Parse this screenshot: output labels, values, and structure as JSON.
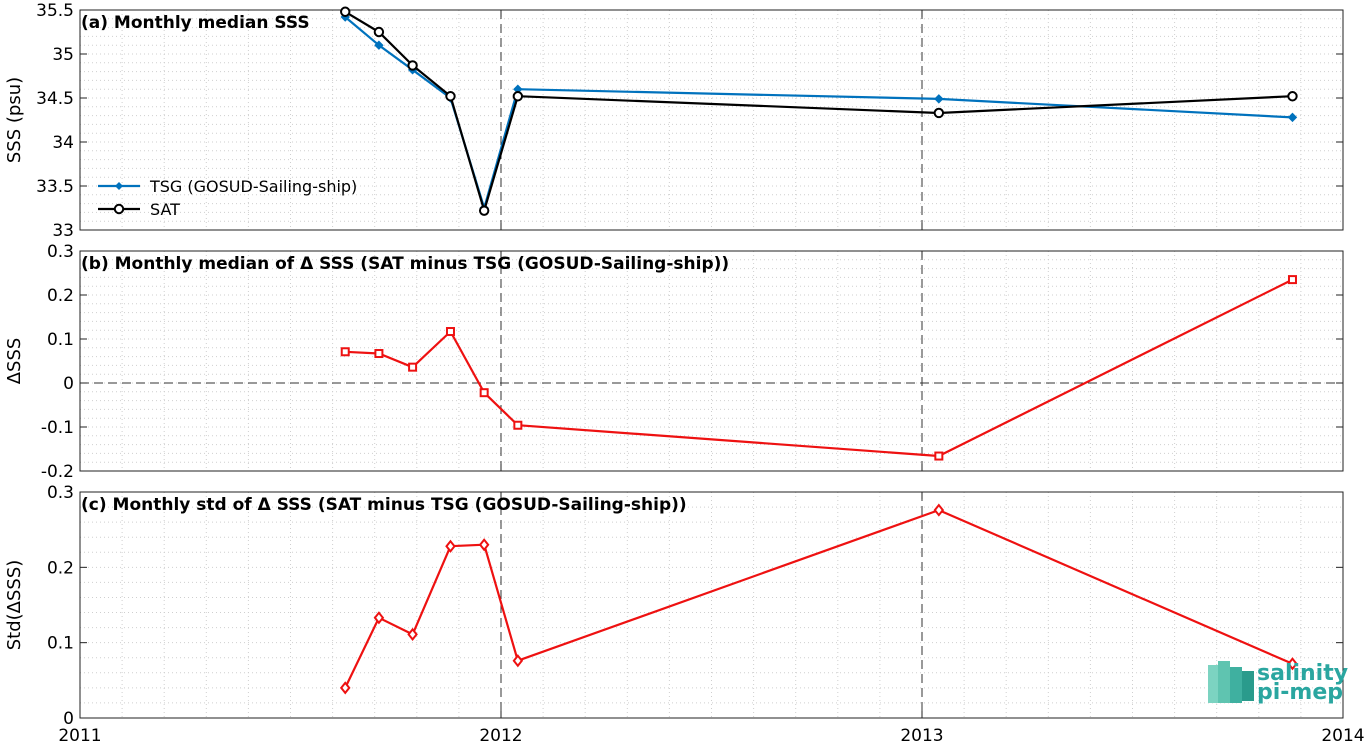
{
  "chart_data": [
    {
      "type": "line",
      "title": "(a) Monthly median SSS",
      "ylabel": "SSS (psu)",
      "xlim": [
        2011,
        2014
      ],
      "ylim": [
        33,
        35.5
      ],
      "yticks": [
        33,
        33.5,
        34,
        34.5,
        35,
        35.5
      ],
      "ytick_labels": [
        "33",
        "33.5",
        "34",
        "34.5",
        "35",
        "35.5"
      ],
      "grid": "minor dotted",
      "legend_position": "lower-left",
      "series": [
        {
          "name": "TSG (GOSUD-Sailing-ship)",
          "color": "#0072bd",
          "marker": "dot",
          "x": [
            2011.63,
            2011.71,
            2011.79,
            2011.88,
            2011.96,
            2012.04,
            2013.04,
            2013.88
          ],
          "values": [
            35.42,
            35.1,
            34.82,
            34.5,
            33.25,
            34.6,
            34.49,
            34.28
          ]
        },
        {
          "name": "SAT",
          "color": "#000000",
          "marker": "circle",
          "x": [
            2011.63,
            2011.71,
            2011.79,
            2011.88,
            2011.96,
            2012.04,
            2013.04,
            2013.88
          ],
          "values": [
            35.48,
            35.25,
            34.87,
            34.52,
            33.22,
            34.52,
            34.33,
            34.52
          ]
        }
      ]
    },
    {
      "type": "line",
      "title": "(b) Monthly median of Δ SSS (SAT minus TSG (GOSUD-Sailing-ship))",
      "ylabel": "ΔSSS",
      "xlim": [
        2011,
        2014
      ],
      "ylim": [
        -0.2,
        0.3
      ],
      "yticks": [
        -0.2,
        -0.1,
        0,
        0.1,
        0.2,
        0.3
      ],
      "ytick_labels": [
        "-0.2",
        "-0.1",
        "0",
        "0.1",
        "0.2",
        "0.3"
      ],
      "zero_line": true,
      "series": [
        {
          "color": "#ee1111",
          "marker": "square",
          "x": [
            2011.63,
            2011.71,
            2011.79,
            2011.88,
            2011.96,
            2012.04,
            2013.04,
            2013.88
          ],
          "values": [
            0.071,
            0.067,
            0.036,
            0.117,
            -0.022,
            -0.096,
            -0.166,
            0.235
          ]
        }
      ]
    },
    {
      "type": "line",
      "title": "(c) Monthly std of Δ SSS (SAT minus TSG (GOSUD-Sailing-ship))",
      "ylabel": "Std(ΔSSS)",
      "xlim": [
        2011,
        2014
      ],
      "ylim": [
        0,
        0.3
      ],
      "yticks": [
        0,
        0.1,
        0.2,
        0.3
      ],
      "ytick_labels": [
        "0",
        "0.1",
        "0.2",
        "0.3"
      ],
      "xticks": [
        2011,
        2012,
        2013,
        2014
      ],
      "xtick_labels": [
        "2011",
        "2012",
        "2013",
        "2014"
      ],
      "series": [
        {
          "color": "#ee1111",
          "marker": "diamond",
          "x": [
            2011.63,
            2011.71,
            2011.79,
            2011.88,
            2011.96,
            2012.04,
            2013.04,
            2013.88
          ],
          "values": [
            0.04,
            0.133,
            0.111,
            0.228,
            0.23,
            0.076,
            0.276,
            0.072
          ]
        }
      ]
    }
  ],
  "logo": {
    "line1": "salinity",
    "line2": "pi-mep"
  }
}
